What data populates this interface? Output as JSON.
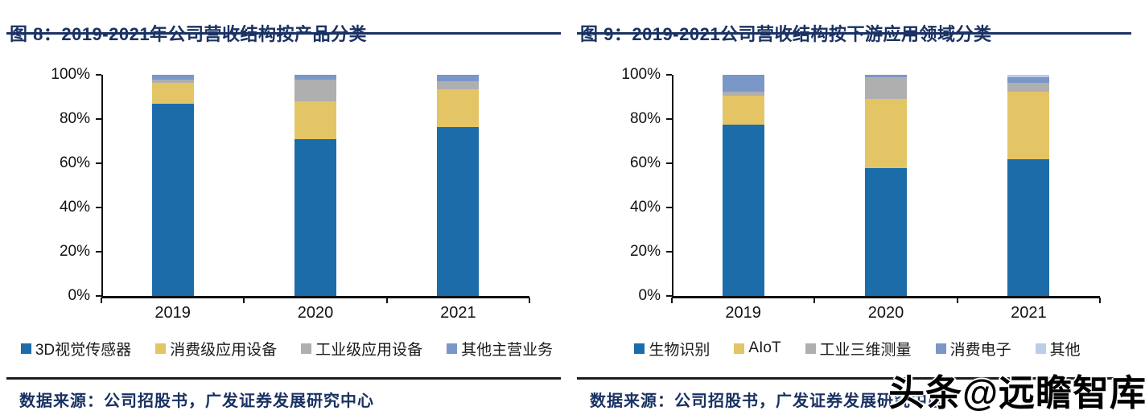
{
  "watermark": "头条@远瞻智库",
  "layout_colors": {
    "title_navy": "#1A3263",
    "axis_black": "#111111",
    "rule_dark": "#1c1c1c"
  },
  "chart_data": [
    {
      "type": "bar",
      "stacked": true,
      "title": "图 8：2019-2021年公司营收结构按产品分类",
      "categories": [
        "2019",
        "2020",
        "2021"
      ],
      "series": [
        {
          "name": "3D视觉传感器",
          "color": "#1C6CA9",
          "values": [
            87.0,
            71.0,
            76.5
          ]
        },
        {
          "name": "消费级应用设备",
          "color": "#E4C566",
          "values": [
            9.5,
            17.0,
            17.0
          ]
        },
        {
          "name": "工业级应用设备",
          "color": "#AFAFAF",
          "values": [
            1.5,
            10.0,
            3.5
          ]
        },
        {
          "name": "其他主营业务",
          "color": "#7B97C7",
          "values": [
            2.0,
            2.0,
            3.0
          ]
        }
      ],
      "ylim": [
        0,
        100
      ],
      "yticks": [
        "0%",
        "20%",
        "40%",
        "60%",
        "80%",
        "100%"
      ],
      "grid": false,
      "legend_position": "bottom",
      "source": "数据来源：公司招股书，广发证券发展研究中心"
    },
    {
      "type": "bar",
      "stacked": true,
      "title": "图 9：2019-2021公司营收结构按下游应用领域分类",
      "categories": [
        "2019",
        "2020",
        "2021"
      ],
      "series": [
        {
          "name": "生物识别",
          "color": "#1C6CA9",
          "values": [
            77.5,
            58.0,
            62.0
          ]
        },
        {
          "name": "AIoT",
          "color": "#E4C566",
          "values": [
            13.0,
            31.0,
            30.5
          ]
        },
        {
          "name": "工业三维测量",
          "color": "#AFAFAF",
          "values": [
            2.0,
            10.0,
            4.0
          ]
        },
        {
          "name": "消费电子",
          "color": "#7B97C7",
          "values": [
            7.5,
            1.0,
            2.5
          ]
        },
        {
          "name": "其他",
          "color": "#BCCDE6",
          "values": [
            0.0,
            0.0,
            1.0
          ]
        }
      ],
      "ylim": [
        0,
        100
      ],
      "yticks": [
        "0%",
        "20%",
        "40%",
        "60%",
        "80%",
        "100%"
      ],
      "grid": false,
      "legend_position": "bottom",
      "source": "数据来源：公司招股书，广发证券发展研究中心"
    }
  ]
}
